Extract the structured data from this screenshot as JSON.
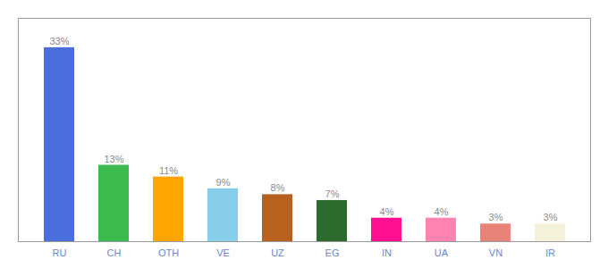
{
  "chart_data": {
    "type": "bar",
    "categories": [
      "RU",
      "CH",
      "OTH",
      "VE",
      "UZ",
      "EG",
      "IN",
      "UA",
      "VN",
      "IR"
    ],
    "values": [
      33,
      13,
      11,
      9,
      8,
      7,
      4,
      4,
      3,
      3
    ],
    "value_labels": [
      "33%",
      "13%",
      "11%",
      "9%",
      "8%",
      "7%",
      "4%",
      "4%",
      "3%",
      "3%"
    ],
    "colors": [
      "#4a6fdc",
      "#3dba4e",
      "#ffa500",
      "#87ceeb",
      "#b8601e",
      "#2d6a2d",
      "#ff1090",
      "#ff85b0",
      "#e8837a",
      "#f5f0d8"
    ],
    "ylim": [
      0,
      38
    ],
    "grid": false,
    "data_labels": true,
    "tick_labels": "x"
  }
}
